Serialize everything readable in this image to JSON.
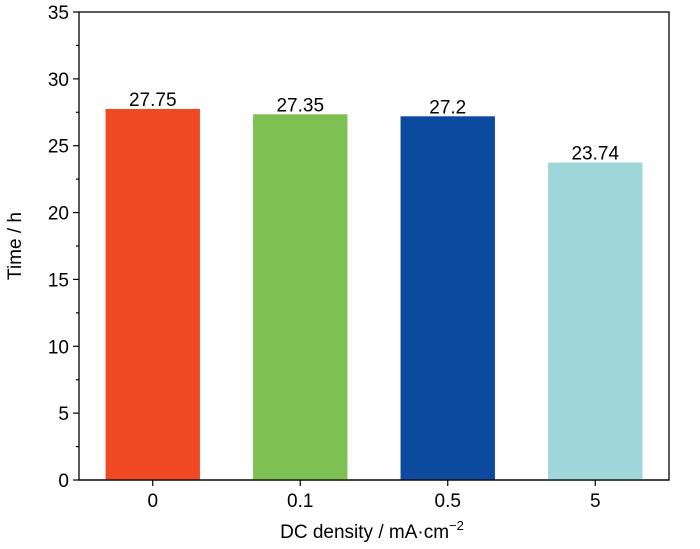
{
  "chart_data": {
    "type": "bar",
    "categories": [
      "0",
      "0.1",
      "0.5",
      "5"
    ],
    "values": [
      27.75,
      27.35,
      27.2,
      23.74
    ],
    "data_labels": [
      "27.75",
      "27.35",
      "27.2",
      "23.74"
    ],
    "colors": [
      "#ef4a23",
      "#7cc152",
      "#0b4a9c",
      "#9fd6da"
    ],
    "xlabel": "DC density / mA·cm",
    "xlabel_superscript": "−2",
    "ylabel": "Time / h",
    "ylim": [
      0,
      35
    ],
    "yticks": [
      0,
      5,
      10,
      15,
      20,
      25,
      30,
      35
    ],
    "ytick_labels": [
      "0",
      "5",
      "10",
      "15",
      "20",
      "25",
      "30",
      "35"
    ],
    "grid": false,
    "legend": "none"
  }
}
